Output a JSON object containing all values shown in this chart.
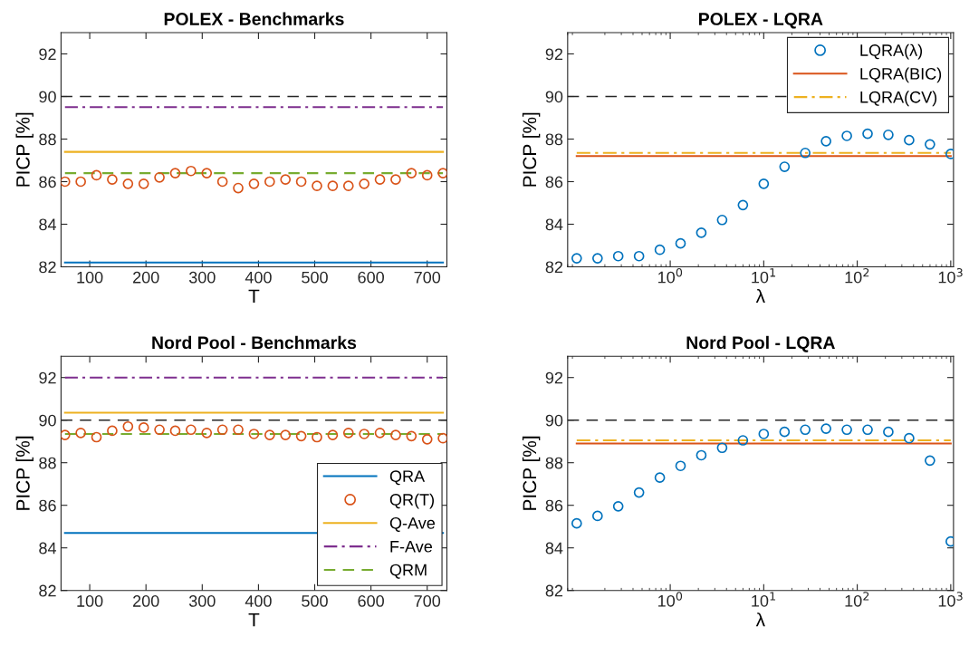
{
  "chart_data": [
    {
      "type": "line",
      "title": "POLEX - Benchmarks",
      "xlabel": "T",
      "ylabel": "PICP [%]",
      "xlim": [
        49,
        735
      ],
      "xticks": [
        100,
        200,
        300,
        400,
        500,
        600,
        700
      ],
      "ylim": [
        82,
        93
      ],
      "yticks": [
        82,
        84,
        86,
        88,
        90,
        92
      ],
      "grid": false,
      "legend": false,
      "ref_lines": [
        {
          "axis": "y",
          "value": 90,
          "color": "#262626",
          "line_style": "dashed"
        }
      ],
      "series": [
        {
          "color": "#0072bd",
          "line_style": "solid",
          "x": [
            56,
            728
          ],
          "values": [
            82.2,
            82.2
          ]
        },
        {
          "type": "scatter",
          "marker": "circle",
          "color": "#d95319",
          "x": [
            56,
            84,
            112,
            140,
            168,
            196,
            224,
            252,
            280,
            308,
            336,
            364,
            392,
            420,
            448,
            476,
            504,
            532,
            560,
            588,
            616,
            644,
            672,
            700,
            728
          ],
          "values": [
            86.0,
            86.0,
            86.3,
            86.1,
            85.9,
            85.9,
            86.2,
            86.4,
            86.5,
            86.4,
            86.0,
            85.7,
            85.9,
            86.0,
            86.1,
            86.0,
            85.8,
            85.8,
            85.8,
            85.9,
            86.1,
            86.1,
            86.4,
            86.3,
            86.4
          ]
        },
        {
          "color": "#edb120",
          "line_style": "solid",
          "x": [
            56,
            728
          ],
          "values": [
            87.4,
            87.4
          ]
        },
        {
          "color": "#7e2f8e",
          "line_style": "dashdot",
          "x": [
            56,
            728
          ],
          "values": [
            89.5,
            89.5
          ]
        },
        {
          "color": "#77ac30",
          "line_style": "dashed",
          "x": [
            56,
            728
          ],
          "values": [
            86.4,
            86.4
          ]
        }
      ]
    },
    {
      "type": "line",
      "title": "POLEX - LQRA",
      "xlabel": "λ",
      "ylabel": "PICP [%]",
      "log": "x",
      "xlim": [
        0.08,
        1070
      ],
      "xticks": [
        {
          "value": 1,
          "label": "10$^{0}$"
        },
        {
          "value": 10,
          "label": "10$^{1}$"
        },
        {
          "value": 100,
          "label": "10$^{2}$"
        },
        {
          "value": 1000,
          "label": "10$^{3}$"
        }
      ],
      "ylim": [
        82,
        93
      ],
      "yticks": [
        82,
        84,
        86,
        88,
        90,
        92
      ],
      "grid": false,
      "legend": "top right",
      "ref_lines": [
        {
          "axis": "y",
          "value": 90,
          "color": "#262626",
          "line_style": "dashed"
        }
      ],
      "series": [
        {
          "type": "scatter",
          "name": "LQRA(λ)",
          "marker": "circle",
          "color": "#0072bd",
          "x": [
            0.1,
            0.167,
            0.278,
            0.464,
            0.774,
            1.29,
            2.15,
            3.59,
            5.99,
            10,
            16.7,
            27.8,
            46.4,
            77.4,
            129,
            215,
            359,
            599,
            1000
          ],
          "values": [
            82.4,
            82.4,
            82.5,
            82.5,
            82.8,
            83.1,
            83.6,
            84.2,
            84.9,
            85.9,
            86.7,
            87.35,
            87.9,
            88.15,
            88.25,
            88.2,
            87.95,
            87.75,
            87.3
          ]
        },
        {
          "name": "LQRA(BIC)",
          "color": "#d95319",
          "line_style": "solid",
          "x": [
            0.1,
            1000
          ],
          "values": [
            87.2,
            87.2
          ]
        },
        {
          "name": "LQRA(CV)",
          "color": "#edb120",
          "line_style": "dashdot",
          "x": [
            0.1,
            1000
          ],
          "values": [
            87.35,
            87.35
          ]
        }
      ]
    },
    {
      "type": "line",
      "title": "Nord Pool - Benchmarks",
      "xlabel": "T",
      "ylabel": "PICP [%]",
      "xlim": [
        49,
        735
      ],
      "xticks": [
        100,
        200,
        300,
        400,
        500,
        600,
        700
      ],
      "ylim": [
        82,
        93
      ],
      "yticks": [
        82,
        84,
        86,
        88,
        90,
        92
      ],
      "grid": false,
      "legend": "bottom right",
      "ref_lines": [
        {
          "axis": "y",
          "value": 90,
          "color": "#262626",
          "line_style": "dashed"
        }
      ],
      "series": [
        {
          "name": "QRA",
          "color": "#0072bd",
          "line_style": "solid",
          "x": [
            56,
            728
          ],
          "values": [
            84.7,
            84.7
          ]
        },
        {
          "type": "scatter",
          "name": "QR(T)",
          "marker": "circle",
          "color": "#d95319",
          "x": [
            56,
            84,
            112,
            140,
            168,
            196,
            224,
            252,
            280,
            308,
            336,
            364,
            392,
            420,
            448,
            476,
            504,
            532,
            560,
            588,
            616,
            644,
            672,
            700,
            728
          ],
          "values": [
            89.3,
            89.4,
            89.2,
            89.5,
            89.7,
            89.65,
            89.55,
            89.5,
            89.55,
            89.4,
            89.55,
            89.55,
            89.35,
            89.3,
            89.3,
            89.25,
            89.2,
            89.3,
            89.4,
            89.35,
            89.4,
            89.3,
            89.25,
            89.1,
            89.15
          ]
        },
        {
          "name": "Q-Ave",
          "color": "#edb120",
          "line_style": "solid",
          "x": [
            56,
            728
          ],
          "values": [
            90.35,
            90.35
          ]
        },
        {
          "name": "F-Ave",
          "color": "#7e2f8e",
          "line_style": "dashdot",
          "x": [
            56,
            728
          ],
          "values": [
            92.0,
            92.0
          ]
        },
        {
          "name": "QRM",
          "color": "#77ac30",
          "line_style": "dashed",
          "x": [
            56,
            728
          ],
          "values": [
            89.35,
            89.35
          ]
        }
      ]
    },
    {
      "type": "line",
      "title": "Nord Pool - LQRA",
      "xlabel": "λ",
      "ylabel": "PICP [%]",
      "log": "x",
      "xlim": [
        0.08,
        1070
      ],
      "xticks": [
        {
          "value": 1,
          "label": "10$^{0}$"
        },
        {
          "value": 10,
          "label": "10$^{1}$"
        },
        {
          "value": 100,
          "label": "10$^{2}$"
        },
        {
          "value": 1000,
          "label": "10$^{3}$"
        }
      ],
      "ylim": [
        82,
        93
      ],
      "yticks": [
        82,
        84,
        86,
        88,
        90,
        92
      ],
      "grid": false,
      "legend": false,
      "ref_lines": [
        {
          "axis": "y",
          "value": 90,
          "color": "#262626",
          "line_style": "dashed"
        }
      ],
      "series": [
        {
          "type": "scatter",
          "marker": "circle",
          "color": "#0072bd",
          "x": [
            0.1,
            0.167,
            0.278,
            0.464,
            0.774,
            1.29,
            2.15,
            3.59,
            5.99,
            10,
            16.7,
            27.8,
            46.4,
            77.4,
            129,
            215,
            359,
            599,
            1000
          ],
          "values": [
            85.15,
            85.5,
            85.95,
            86.6,
            87.3,
            87.85,
            88.35,
            88.7,
            89.05,
            89.35,
            89.45,
            89.55,
            89.6,
            89.55,
            89.55,
            89.45,
            89.15,
            88.1,
            84.3
          ]
        },
        {
          "color": "#d95319",
          "line_style": "solid",
          "x": [
            0.1,
            1000
          ],
          "values": [
            88.9,
            88.9
          ]
        },
        {
          "color": "#edb120",
          "line_style": "dashdot",
          "x": [
            0.1,
            1000
          ],
          "values": [
            89.05,
            89.05
          ]
        }
      ]
    }
  ]
}
